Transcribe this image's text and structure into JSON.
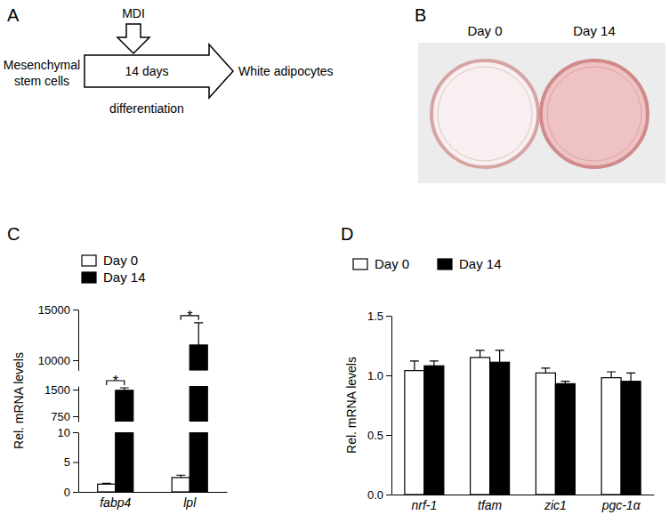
{
  "panels": [
    "A",
    "B",
    "C",
    "D"
  ],
  "diagram": {
    "top_input": "MDI",
    "left": [
      "Mesenchymal",
      "stem cells"
    ],
    "arrow_text": "14 days",
    "below": "differentiation",
    "right": "White adipocytes"
  },
  "photo": {
    "labels": [
      "Day 0",
      "Day 14"
    ]
  },
  "chart_data": [
    {
      "type": "bar",
      "ylabel": "Rel. mRNA levels",
      "categories": [
        "fabp4",
        "lpl"
      ],
      "series": [
        {
          "name": "Day 0",
          "color": "#ffffff",
          "values": [
            1.3,
            2.4
          ],
          "errors": [
            0.15,
            0.4
          ]
        },
        {
          "name": "Day 14",
          "color": "#000000",
          "values": [
            1480,
            11500
          ],
          "errors": [
            70,
            2200
          ]
        }
      ],
      "y_segments": [
        {
          "ylim": [
            0,
            10
          ],
          "yticks": [
            0,
            5,
            10
          ]
        },
        {
          "ylim": [
            600,
            1600
          ],
          "yticks": [
            750,
            1500
          ]
        },
        {
          "ylim": [
            9000,
            15000
          ],
          "yticks": [
            10000,
            15000
          ]
        }
      ],
      "annotations": [
        {
          "category": 0,
          "text": "*"
        },
        {
          "category": 1,
          "text": "*"
        }
      ],
      "legend": "top-left"
    },
    {
      "type": "bar",
      "ylabel": "Rel. mRNA levels",
      "categories": [
        "nrf-1",
        "tfam",
        "zic1",
        "pgc-1α"
      ],
      "series": [
        {
          "name": "Day 0",
          "color": "#ffffff",
          "values": [
            1.04,
            1.15,
            1.02,
            0.98
          ],
          "errors": [
            0.08,
            0.06,
            0.04,
            0.05
          ]
        },
        {
          "name": "Day 14",
          "color": "#000000",
          "values": [
            1.08,
            1.11,
            0.93,
            0.95
          ],
          "errors": [
            0.04,
            0.1,
            0.02,
            0.07
          ]
        }
      ],
      "ylim": [
        0,
        1.5
      ],
      "yticks": [
        {
          "value": 0,
          "label": "0.0"
        },
        0.5,
        {
          "value": 1,
          "label": "1.0"
        },
        1.5
      ],
      "legend": "top"
    }
  ]
}
